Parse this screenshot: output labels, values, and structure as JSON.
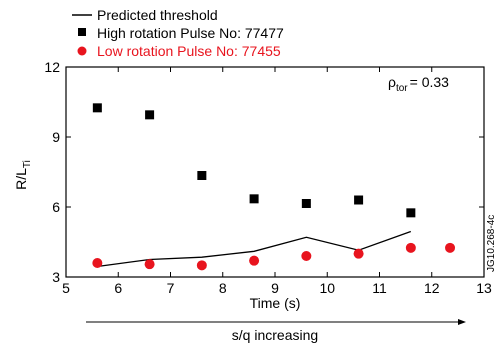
{
  "chart_data": {
    "type": "scatter",
    "xlabel": "Time (s)",
    "ylabel_main": "R/L",
    "ylabel_sub": "Ti",
    "xlim": [
      5,
      13
    ],
    "ylim": [
      3,
      12
    ],
    "xticks": [
      5,
      6,
      7,
      8,
      9,
      10,
      11,
      12,
      13
    ],
    "yticks": [
      3,
      6,
      9,
      12
    ],
    "grid": false,
    "legend_position": "top-left, above plot",
    "annotation": {
      "rho_symbol": "ρ",
      "rho_sub": "tor",
      "rho_value": "= 0.33"
    },
    "side_label": "JG10.268-4c",
    "arrow_label": "s/q increasing",
    "series": [
      {
        "name": "Predicted threshold",
        "kind": "line",
        "color": "#000000",
        "x": [
          5.6,
          6.6,
          7.6,
          8.6,
          9.6,
          10.6,
          11.6
        ],
        "y": [
          3.45,
          3.75,
          3.85,
          4.1,
          4.7,
          4.15,
          4.95
        ]
      },
      {
        "name": "High rotation Pulse No: 77477",
        "kind": "square",
        "color": "#000000",
        "x": [
          5.6,
          6.6,
          7.6,
          8.6,
          9.6,
          10.6,
          11.6
        ],
        "y": [
          10.25,
          9.95,
          7.35,
          6.35,
          6.15,
          6.3,
          5.75
        ]
      },
      {
        "name": "Low rotation Pulse No: 77455",
        "kind": "circle",
        "color": "#e8141e",
        "x": [
          5.6,
          6.6,
          7.6,
          8.6,
          9.6,
          10.6,
          11.6,
          12.35
        ],
        "y": [
          3.6,
          3.55,
          3.5,
          3.7,
          3.9,
          4.0,
          4.25,
          4.25
        ]
      }
    ]
  }
}
